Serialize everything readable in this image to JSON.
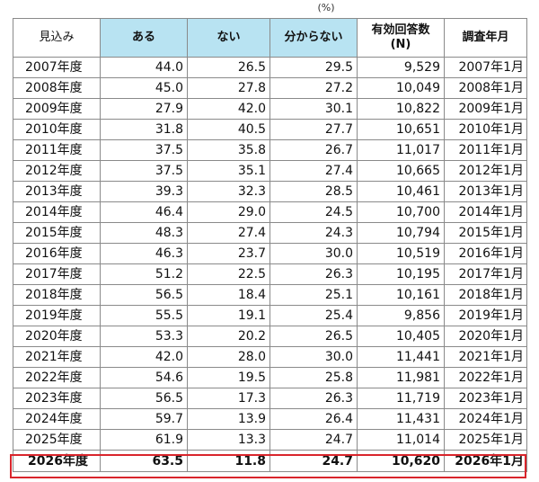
{
  "unit_label": "(%)",
  "headers": [
    "見込み",
    "ある",
    "ない",
    "分からない",
    "有効回答数\n(N)",
    "調査年月"
  ],
  "rows": [
    [
      "2007年度",
      "44.0",
      "26.5",
      "29.5",
      "9,529",
      "2007年1月"
    ],
    [
      "2008年度",
      "45.0",
      "27.8",
      "27.2",
      "10,049",
      "2008年1月"
    ],
    [
      "2009年度",
      "27.9",
      "42.0",
      "30.1",
      "10,822",
      "2009年1月"
    ],
    [
      "2010年度",
      "31.8",
      "40.5",
      "27.7",
      "10,651",
      "2010年1月"
    ],
    [
      "2011年度",
      "37.5",
      "35.8",
      "26.7",
      "11,017",
      "2011年1月"
    ],
    [
      "2012年度",
      "37.5",
      "35.1",
      "27.4",
      "10,665",
      "2012年1月"
    ],
    [
      "2013年度",
      "39.3",
      "32.3",
      "28.5",
      "10,461",
      "2013年1月"
    ],
    [
      "2014年度",
      "46.4",
      "29.0",
      "24.5",
      "10,700",
      "2014年1月"
    ],
    [
      "2015年度",
      "48.3",
      "27.4",
      "24.3",
      "10,794",
      "2015年1月"
    ],
    [
      "2016年度",
      "46.3",
      "23.7",
      "30.0",
      "10,519",
      "2016年1月"
    ],
    [
      "2017年度",
      "51.2",
      "22.5",
      "26.3",
      "10,195",
      "2017年1月"
    ],
    [
      "2018年度",
      "56.5",
      "18.4",
      "25.1",
      "10,161",
      "2018年1月"
    ],
    [
      "2019年度",
      "55.5",
      "19.1",
      "25.4",
      "9,856",
      "2019年1月"
    ],
    [
      "2020年度",
      "53.3",
      "20.2",
      "26.5",
      "10,405",
      "2020年1月"
    ],
    [
      "2021年度",
      "42.0",
      "28.0",
      "30.0",
      "11,441",
      "2021年1月"
    ],
    [
      "2022年度",
      "54.6",
      "19.5",
      "25.8",
      "11,981",
      "2022年1月"
    ],
    [
      "2023年度",
      "56.5",
      "17.3",
      "26.3",
      "11,719",
      "2023年1月"
    ],
    [
      "2024年度",
      "59.7",
      "13.9",
      "26.4",
      "11,431",
      "2024年1月"
    ],
    [
      "2025年度",
      "61.9",
      "13.3",
      "24.7",
      "11,014",
      "2025年1月"
    ],
    [
      "2026年度",
      "63.5",
      "11.8",
      "24.7",
      "10,620",
      "2026年1月"
    ]
  ],
  "colors": {
    "header_accent": "#b8e3f2",
    "highlight_border": "#d9252c"
  }
}
